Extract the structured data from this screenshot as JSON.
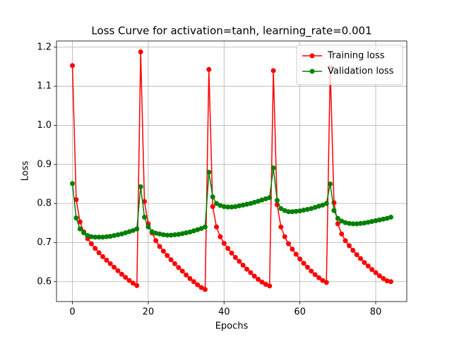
{
  "chart_data": {
    "type": "line",
    "title": "Loss Curve for activation=tanh, learning_rate=0.001",
    "xlabel": "Epochs",
    "ylabel": "Loss",
    "x": [
      0,
      1,
      2,
      3,
      4,
      5,
      6,
      7,
      8,
      9,
      10,
      11,
      12,
      13,
      14,
      15,
      16,
      17,
      18,
      19,
      20,
      21,
      22,
      23,
      24,
      25,
      26,
      27,
      28,
      29,
      30,
      31,
      32,
      33,
      34,
      35,
      36,
      37,
      38,
      39,
      40,
      41,
      42,
      43,
      44,
      45,
      46,
      47,
      48,
      49,
      50,
      51,
      52,
      53,
      54,
      55,
      56,
      57,
      58,
      59,
      60,
      61,
      62,
      63,
      64,
      65,
      66,
      67,
      68,
      69,
      70,
      71,
      72,
      73,
      74,
      75,
      76,
      77,
      78,
      79,
      80,
      81,
      82,
      83,
      84
    ],
    "series": [
      {
        "name": "Training loss",
        "color": "#ff0000",
        "values": [
          1.153,
          0.81,
          0.753,
          0.727,
          0.71,
          0.697,
          0.685,
          0.674,
          0.664,
          0.655,
          0.646,
          0.637,
          0.628,
          0.619,
          0.611,
          0.603,
          0.596,
          0.59,
          1.188,
          0.805,
          0.748,
          0.725,
          0.705,
          0.69,
          0.678,
          0.667,
          0.656,
          0.646,
          0.636,
          0.627,
          0.617,
          0.608,
          0.6,
          0.592,
          0.585,
          0.58,
          1.143,
          0.792,
          0.74,
          0.715,
          0.698,
          0.685,
          0.673,
          0.662,
          0.652,
          0.642,
          0.632,
          0.623,
          0.614,
          0.606,
          0.599,
          0.593,
          0.589,
          1.14,
          0.797,
          0.74,
          0.715,
          0.697,
          0.683,
          0.67,
          0.658,
          0.647,
          0.637,
          0.627,
          0.618,
          0.61,
          0.603,
          0.598,
          1.148,
          0.802,
          0.748,
          0.722,
          0.705,
          0.692,
          0.68,
          0.669,
          0.659,
          0.649,
          0.64,
          0.631,
          0.623,
          0.615,
          0.608,
          0.602,
          0.6
        ]
      },
      {
        "name": "Validation loss",
        "color": "#008000",
        "values": [
          0.851,
          0.763,
          0.735,
          0.725,
          0.718,
          0.715,
          0.714,
          0.714,
          0.714,
          0.715,
          0.716,
          0.718,
          0.72,
          0.722,
          0.725,
          0.728,
          0.731,
          0.735,
          0.843,
          0.765,
          0.74,
          0.728,
          0.724,
          0.722,
          0.72,
          0.719,
          0.719,
          0.72,
          0.721,
          0.723,
          0.725,
          0.727,
          0.73,
          0.733,
          0.736,
          0.74,
          0.88,
          0.817,
          0.8,
          0.795,
          0.792,
          0.791,
          0.791,
          0.792,
          0.794,
          0.796,
          0.798,
          0.8,
          0.803,
          0.806,
          0.809,
          0.812,
          0.815,
          0.891,
          0.808,
          0.787,
          0.782,
          0.779,
          0.779,
          0.78,
          0.781,
          0.783,
          0.785,
          0.787,
          0.79,
          0.793,
          0.796,
          0.8,
          0.85,
          0.782,
          0.762,
          0.755,
          0.751,
          0.749,
          0.748,
          0.748,
          0.749,
          0.75,
          0.752,
          0.754,
          0.756,
          0.758,
          0.76,
          0.762,
          0.765
        ]
      }
    ],
    "xlim": [
      -4.2,
      88.2
    ],
    "ylim": [
      0.549,
      1.216
    ],
    "xticks": [
      0,
      20,
      40,
      60,
      80
    ],
    "yticks": [
      0.6,
      0.7,
      0.8,
      0.9,
      {
        "value": 1,
        "label": "1.0"
      },
      1.1,
      1.2
    ],
    "grid": true,
    "legend": "upper right"
  }
}
